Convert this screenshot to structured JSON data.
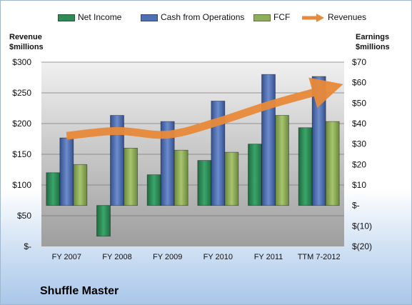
{
  "chart_data": {
    "type": "bar",
    "title": "",
    "company": "Shuffle Master",
    "categories": [
      "FY 2007",
      "FY 2008",
      "FY 2009",
      "FY 2010",
      "FY 2011",
      "TTM 7-2012"
    ],
    "left_axis": {
      "title_line1": "Revenue",
      "title_line2": "$millions",
      "ylim": [
        0,
        300
      ],
      "ticks": [
        "$-",
        "$50",
        "$100",
        "$150",
        "$200",
        "$250",
        "$300"
      ]
    },
    "right_axis": {
      "title_line1": "Earnings",
      "title_line2": "$millions",
      "ylim": [
        -20,
        70
      ],
      "ticks": [
        "$(20)",
        "$(10)",
        "$-",
        "$10",
        "$20",
        "$30",
        "$40",
        "$50",
        "$60",
        "$70"
      ]
    },
    "series": [
      {
        "name": "Net Income",
        "axis": "right",
        "kind": "bar",
        "color": "#2e8b57",
        "values": [
          16,
          -15,
          15,
          22,
          30,
          38
        ]
      },
      {
        "name": "Cash from Operations",
        "axis": "right",
        "kind": "bar",
        "color": "#4f6fb5",
        "values": [
          33,
          44,
          41,
          51,
          64,
          63
        ]
      },
      {
        "name": "FCF",
        "axis": "right",
        "kind": "bar",
        "color": "#8fae5a",
        "values": [
          20,
          28,
          27,
          26,
          44,
          41
        ]
      },
      {
        "name": "Revenues",
        "axis": "left",
        "kind": "line",
        "color": "#e98a3a",
        "values": [
          180,
          188,
          182,
          203,
          230,
          253
        ]
      }
    ],
    "grid": true,
    "legend_position": "top"
  }
}
